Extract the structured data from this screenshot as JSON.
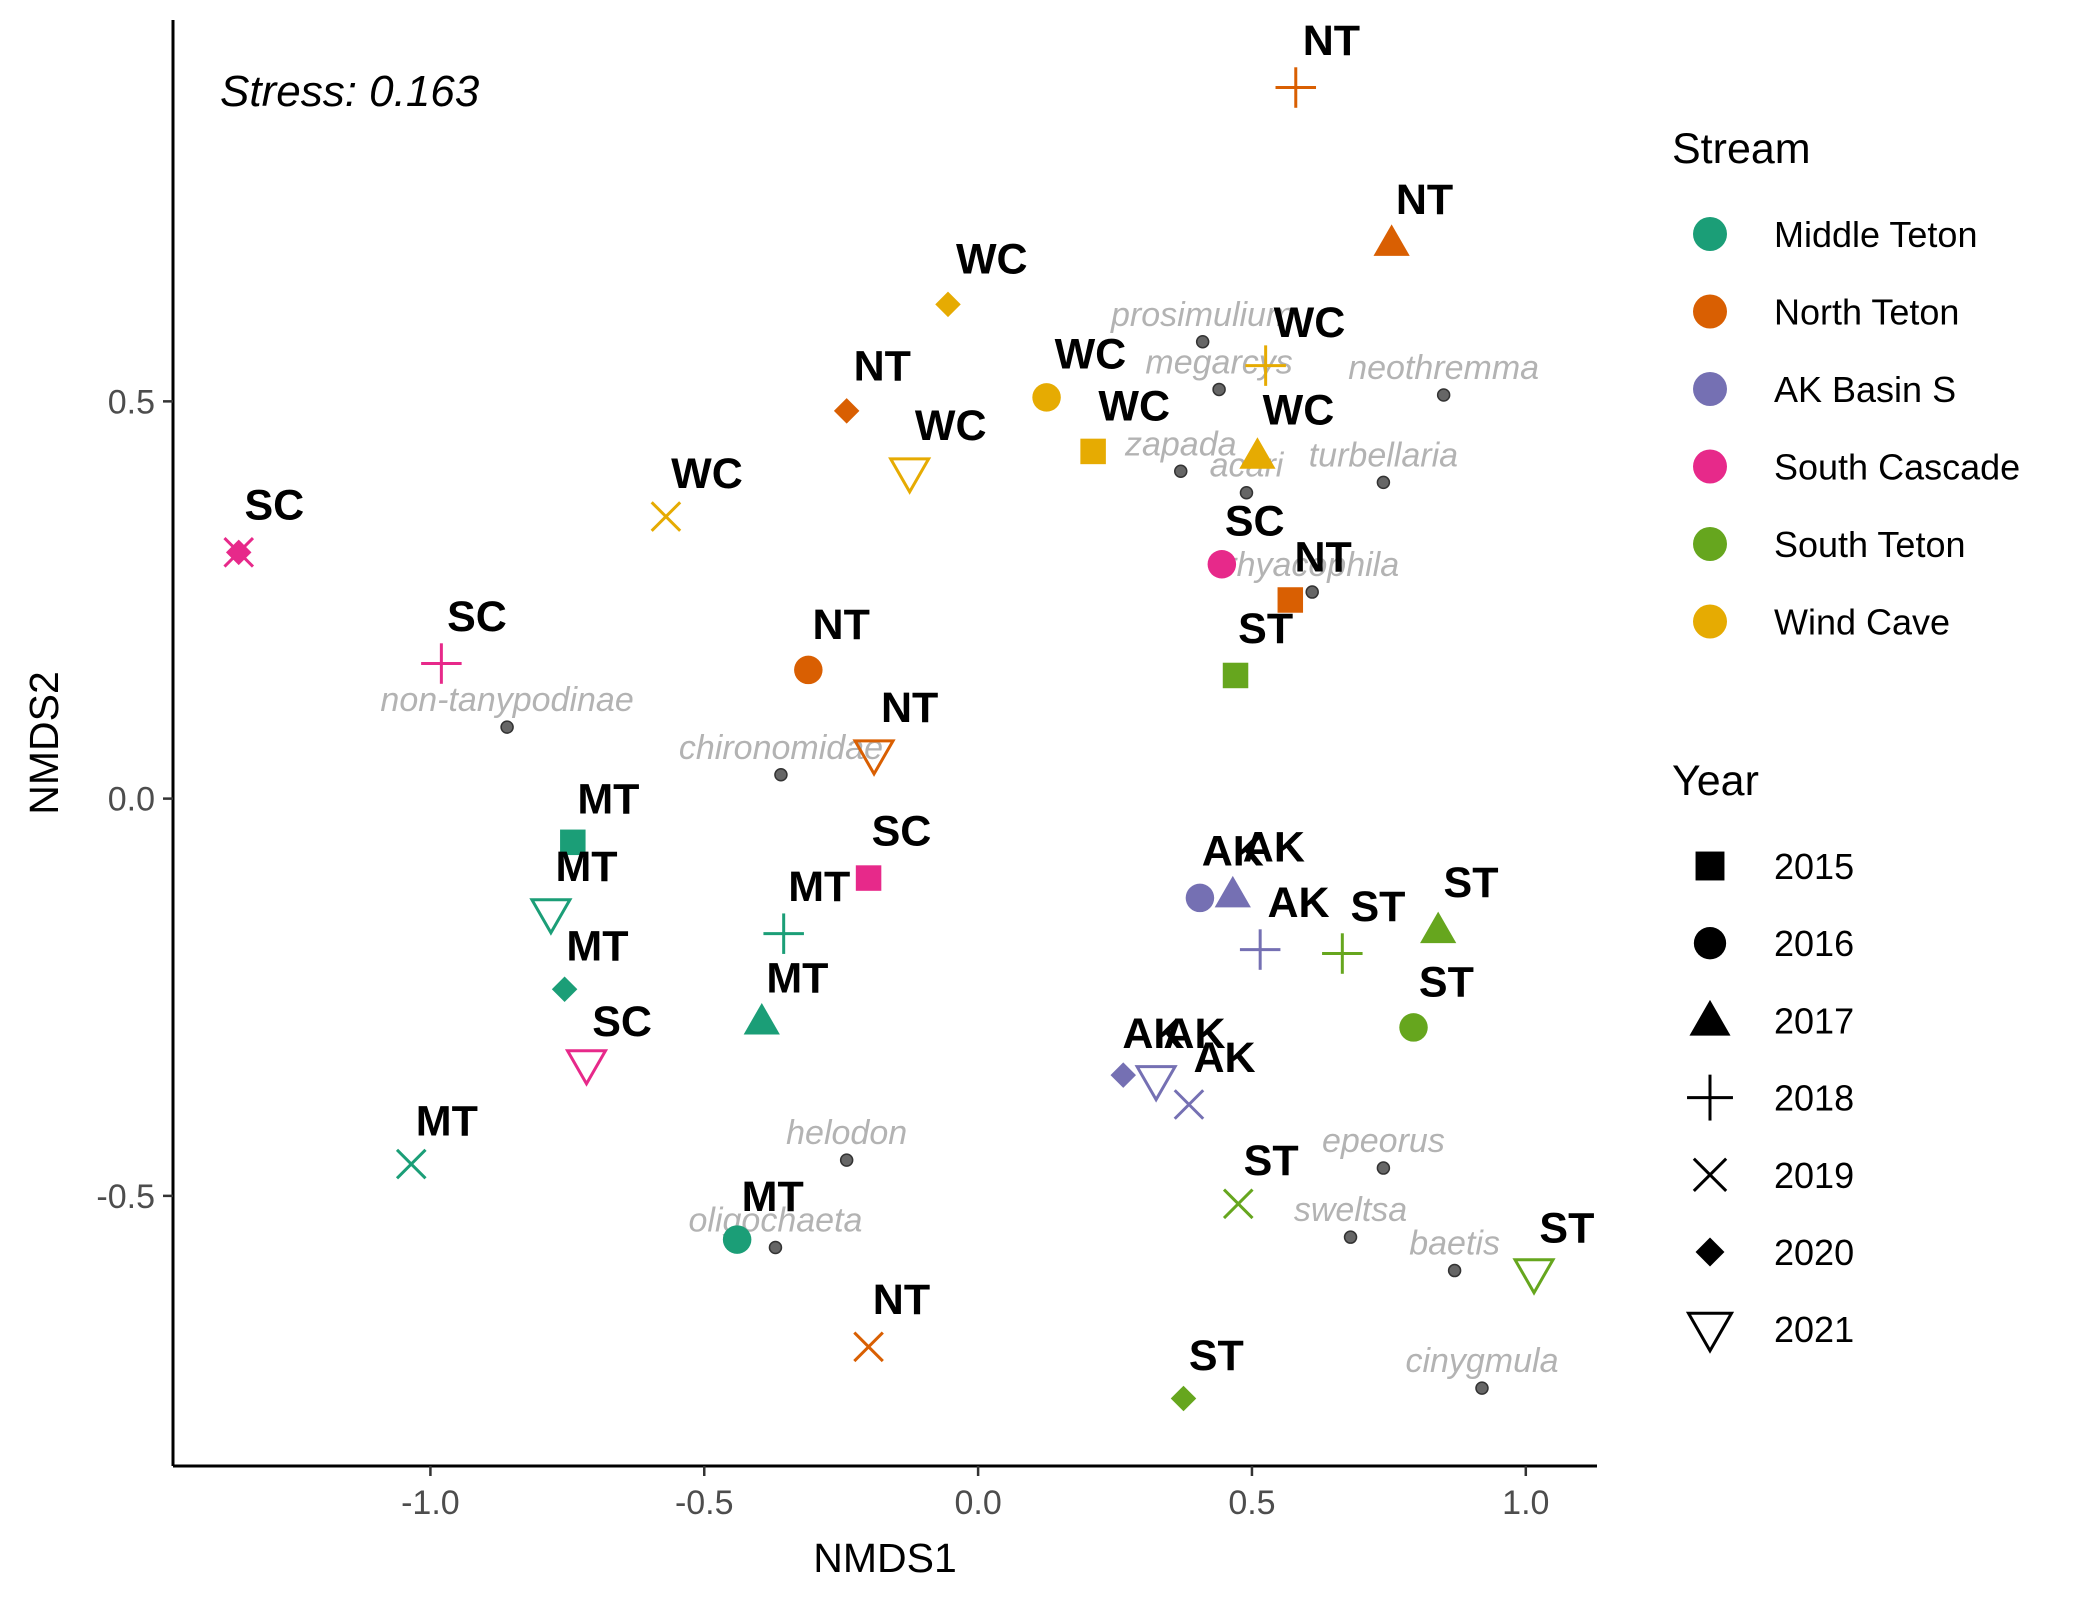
{
  "chart_data": {
    "type": "scatter",
    "xlabel": "NMDS1",
    "ylabel": "NMDS2",
    "annotation": "Stress:  0.163",
    "xlim": [
      -1.47,
      1.13
    ],
    "ylim": [
      -0.84,
      0.98
    ],
    "xticks": [
      {
        "value": -1.0,
        "label": "-1.0"
      },
      {
        "value": -0.5,
        "label": "-0.5"
      },
      {
        "value": 0.0,
        "label": "0.0"
      },
      {
        "value": 0.5,
        "label": "0.5"
      },
      {
        "value": 1.0,
        "label": "1.0"
      }
    ],
    "yticks": [
      {
        "value": -0.5,
        "label": "-0.5"
      },
      {
        "value": 0.0,
        "label": "0.0"
      },
      {
        "value": 0.5,
        "label": "0.5"
      }
    ],
    "grid": false,
    "legend_position": "right",
    "stream_legend": {
      "title": "Stream",
      "items": [
        {
          "key": "MT",
          "label": "Middle Teton",
          "color": "#1b9e77"
        },
        {
          "key": "NT",
          "label": "North Teton",
          "color": "#d95f02"
        },
        {
          "key": "AK",
          "label": "AK Basin S",
          "color": "#7570b3"
        },
        {
          "key": "SC",
          "label": "South Cascade",
          "color": "#e7298a"
        },
        {
          "key": "ST",
          "label": "South Teton",
          "color": "#66a61e"
        },
        {
          "key": "WC",
          "label": "Wind Cave",
          "color": "#e6ab02"
        }
      ]
    },
    "year_legend": {
      "title": "Year",
      "items": [
        {
          "year": "2015",
          "shape": "square"
        },
        {
          "year": "2016",
          "shape": "circle"
        },
        {
          "year": "2017",
          "shape": "triangle"
        },
        {
          "year": "2018",
          "shape": "plus"
        },
        {
          "year": "2019",
          "shape": "cross"
        },
        {
          "year": "2020",
          "shape": "diamond"
        },
        {
          "year": "2021",
          "shape": "triangle-down"
        }
      ]
    },
    "taxa_points": [
      {
        "name": "prosimulium",
        "x": 0.41,
        "y": 0.575
      },
      {
        "name": "megarcys",
        "x": 0.44,
        "y": 0.515
      },
      {
        "name": "neothremma",
        "x": 0.85,
        "y": 0.508
      },
      {
        "name": "zapada",
        "x": 0.37,
        "y": 0.412
      },
      {
        "name": "acari",
        "x": 0.49,
        "y": 0.385
      },
      {
        "name": "turbellaria",
        "x": 0.74,
        "y": 0.398
      },
      {
        "name": "rhyacophila",
        "x": 0.61,
        "y": 0.26
      },
      {
        "name": "non-tanypodinae",
        "x": -0.86,
        "y": 0.09
      },
      {
        "name": "chironomidae",
        "x": -0.36,
        "y": 0.03
      },
      {
        "name": "helodon",
        "x": -0.24,
        "y": -0.455
      },
      {
        "name": "oligochaeta",
        "x": -0.37,
        "y": -0.565
      },
      {
        "name": "epeorus",
        "x": 0.74,
        "y": -0.465
      },
      {
        "name": "sweltsa",
        "x": 0.68,
        "y": -0.552
      },
      {
        "name": "baetis",
        "x": 0.87,
        "y": -0.594
      },
      {
        "name": "cinygmula",
        "x": 0.92,
        "y": -0.742
      }
    ],
    "sample_points": [
      {
        "stream": "NT",
        "year": "2018",
        "x": 0.58,
        "y": 0.895
      },
      {
        "stream": "NT",
        "year": "2017",
        "x": 0.755,
        "y": 0.7
      },
      {
        "stream": "WC",
        "year": "2020",
        "x": -0.055,
        "y": 0.622
      },
      {
        "stream": "WC",
        "year": "2018",
        "x": 0.525,
        "y": 0.545
      },
      {
        "stream": "WC",
        "year": "2016",
        "x": 0.125,
        "y": 0.505
      },
      {
        "stream": "NT",
        "year": "2020",
        "x": -0.24,
        "y": 0.488
      },
      {
        "stream": "WC",
        "year": "2015",
        "x": 0.21,
        "y": 0.437
      },
      {
        "stream": "WC",
        "year": "2017",
        "x": 0.51,
        "y": 0.432
      },
      {
        "stream": "WC",
        "year": "2021",
        "x": -0.125,
        "y": 0.41
      },
      {
        "stream": "WC",
        "year": "2019",
        "x": -0.57,
        "y": 0.355
      },
      {
        "stream": "SC",
        "year": "2020",
        "x": -1.35,
        "y": 0.31
      },
      {
        "stream": "SC",
        "year": "2019",
        "x": -1.35,
        "y": 0.31
      },
      {
        "stream": "SC",
        "year": "2016",
        "x": 0.445,
        "y": 0.295
      },
      {
        "stream": "NT",
        "year": "2015",
        "x": 0.57,
        "y": 0.25
      },
      {
        "stream": "SC",
        "year": "2018",
        "x": -0.98,
        "y": 0.17
      },
      {
        "stream": "NT",
        "year": "2016",
        "x": -0.31,
        "y": 0.162
      },
      {
        "stream": "ST",
        "year": "2015",
        "x": 0.47,
        "y": 0.155
      },
      {
        "stream": "NT",
        "year": "2021",
        "x": -0.19,
        "y": 0.055
      },
      {
        "stream": "MT",
        "year": "2015",
        "x": -0.74,
        "y": -0.055
      },
      {
        "stream": "SC",
        "year": "2015",
        "x": -0.2,
        "y": -0.1
      },
      {
        "stream": "MT",
        "year": "2021",
        "x": -0.78,
        "y": -0.145
      },
      {
        "stream": "MT",
        "year": "2018",
        "x": -0.355,
        "y": -0.17
      },
      {
        "stream": "AK",
        "year": "2016",
        "x": 0.405,
        "y": -0.125
      },
      {
        "stream": "AK",
        "year": "2017",
        "x": 0.465,
        "y": -0.12
      },
      {
        "stream": "AK",
        "year": "2018",
        "x": 0.515,
        "y": -0.19
      },
      {
        "stream": "ST",
        "year": "2018",
        "x": 0.665,
        "y": -0.195
      },
      {
        "stream": "ST",
        "year": "2017",
        "x": 0.84,
        "y": -0.165
      },
      {
        "stream": "MT",
        "year": "2020",
        "x": -0.755,
        "y": -0.24
      },
      {
        "stream": "MT",
        "year": "2017",
        "x": -0.395,
        "y": -0.28
      },
      {
        "stream": "ST",
        "year": "2016",
        "x": 0.795,
        "y": -0.288
      },
      {
        "stream": "SC",
        "year": "2021",
        "x": -0.715,
        "y": -0.335
      },
      {
        "stream": "AK",
        "year": "2020",
        "x": 0.265,
        "y": -0.348
      },
      {
        "stream": "AK",
        "year": "2021",
        "x": 0.325,
        "y": -0.355
      },
      {
        "stream": "AK",
        "year": "2019",
        "x": 0.385,
        "y": -0.385
      },
      {
        "stream": "MT",
        "year": "2019",
        "x": -1.035,
        "y": -0.46
      },
      {
        "stream": "ST",
        "year": "2019",
        "x": 0.475,
        "y": -0.51
      },
      {
        "stream": "MT",
        "year": "2016",
        "x": -0.44,
        "y": -0.555
      },
      {
        "stream": "ST",
        "year": "2021",
        "x": 1.015,
        "y": -0.598
      },
      {
        "stream": "NT",
        "year": "2019",
        "x": -0.2,
        "y": -0.69
      },
      {
        "stream": "ST",
        "year": "2020",
        "x": 0.375,
        "y": -0.755
      }
    ],
    "point_labels": [
      {
        "text": "NT",
        "x": 0.645,
        "y": 0.955
      },
      {
        "text": "NT",
        "x": 0.815,
        "y": 0.755
      },
      {
        "text": "WC",
        "x": 0.025,
        "y": 0.68
      },
      {
        "text": "WC",
        "x": 0.605,
        "y": 0.6
      },
      {
        "text": "WC",
        "x": 0.205,
        "y": 0.56
      },
      {
        "text": "NT",
        "x": -0.175,
        "y": 0.545
      },
      {
        "text": "WC",
        "x": 0.285,
        "y": 0.495
      },
      {
        "text": "WC",
        "x": 0.585,
        "y": 0.49
      },
      {
        "text": "WC",
        "x": -0.05,
        "y": 0.47
      },
      {
        "text": "WC",
        "x": -0.495,
        "y": 0.41
      },
      {
        "text": "SC",
        "x": -1.285,
        "y": 0.37
      },
      {
        "text": "SC",
        "x": 0.505,
        "y": 0.35
      },
      {
        "text": "NT",
        "x": 0.63,
        "y": 0.305
      },
      {
        "text": "SC",
        "x": -0.915,
        "y": 0.23
      },
      {
        "text": "NT",
        "x": -0.25,
        "y": 0.22
      },
      {
        "text": "ST",
        "x": 0.525,
        "y": 0.215
      },
      {
        "text": "NT",
        "x": -0.125,
        "y": 0.115
      },
      {
        "text": "MT",
        "x": -0.675,
        "y": 0.0
      },
      {
        "text": "SC",
        "x": -0.14,
        "y": -0.04
      },
      {
        "text": "MT",
        "x": -0.715,
        "y": -0.085
      },
      {
        "text": "MT",
        "x": -0.29,
        "y": -0.11
      },
      {
        "text": "AK",
        "x": 0.465,
        "y": -0.065
      },
      {
        "text": "AK",
        "x": 0.54,
        "y": -0.06
      },
      {
        "text": "AK",
        "x": 0.585,
        "y": -0.13
      },
      {
        "text": "ST",
        "x": 0.73,
        "y": -0.135
      },
      {
        "text": "ST",
        "x": 0.9,
        "y": -0.105
      },
      {
        "text": "MT",
        "x": -0.695,
        "y": -0.185
      },
      {
        "text": "MT",
        "x": -0.33,
        "y": -0.225
      },
      {
        "text": "ST",
        "x": 0.855,
        "y": -0.23
      },
      {
        "text": "SC",
        "x": -0.65,
        "y": -0.28
      },
      {
        "text": "AK",
        "x": 0.32,
        "y": -0.295
      },
      {
        "text": "AK",
        "x": 0.395,
        "y": -0.295
      },
      {
        "text": "AK",
        "x": 0.45,
        "y": -0.325
      },
      {
        "text": "MT",
        "x": -0.97,
        "y": -0.405
      },
      {
        "text": "ST",
        "x": 0.535,
        "y": -0.455
      },
      {
        "text": "MT",
        "x": -0.375,
        "y": -0.5
      },
      {
        "text": "ST",
        "x": 1.075,
        "y": -0.54
      },
      {
        "text": "NT",
        "x": -0.14,
        "y": -0.63
      },
      {
        "text": "ST",
        "x": 0.435,
        "y": -0.7
      }
    ]
  }
}
